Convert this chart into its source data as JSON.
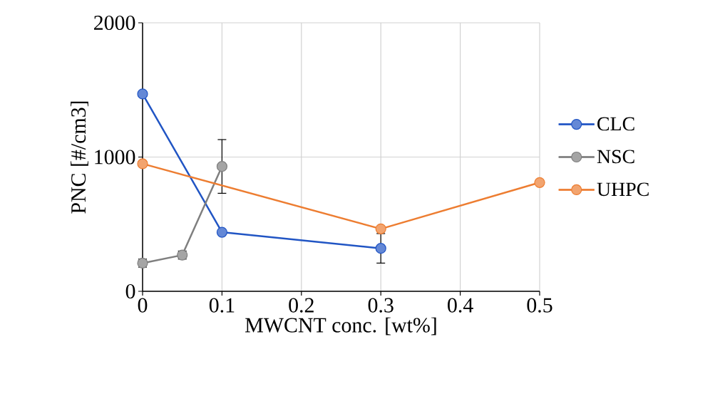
{
  "chart_data": {
    "type": "line",
    "xlabel": "MWCNT conc. [wt%]",
    "ylabel": "PNC [#/cm3]",
    "xlim": [
      0,
      0.5
    ],
    "xticks": [
      0,
      0.1,
      0.2,
      0.3,
      0.4,
      0.5
    ],
    "ylim": [
      0,
      2000
    ],
    "yticks": [
      0,
      1000,
      2000
    ],
    "grid": true,
    "legend": "right",
    "marker": "circle",
    "series": [
      {
        "name": "CLC",
        "color": "#2155c4",
        "x": [
          0,
          0.1,
          0.3
        ],
        "values": [
          1470,
          440,
          320
        ],
        "errors": [
          null,
          null,
          110
        ]
      },
      {
        "name": "NSC",
        "color": "#7f7f7f",
        "x": [
          0,
          0.05,
          0.1
        ],
        "values": [
          210,
          270,
          930
        ],
        "errors": [
          30,
          30,
          200
        ]
      },
      {
        "name": "UHPC",
        "color": "#ed7d31",
        "x": [
          0,
          0.3,
          0.5
        ],
        "values": [
          950,
          465,
          810
        ]
      }
    ]
  }
}
